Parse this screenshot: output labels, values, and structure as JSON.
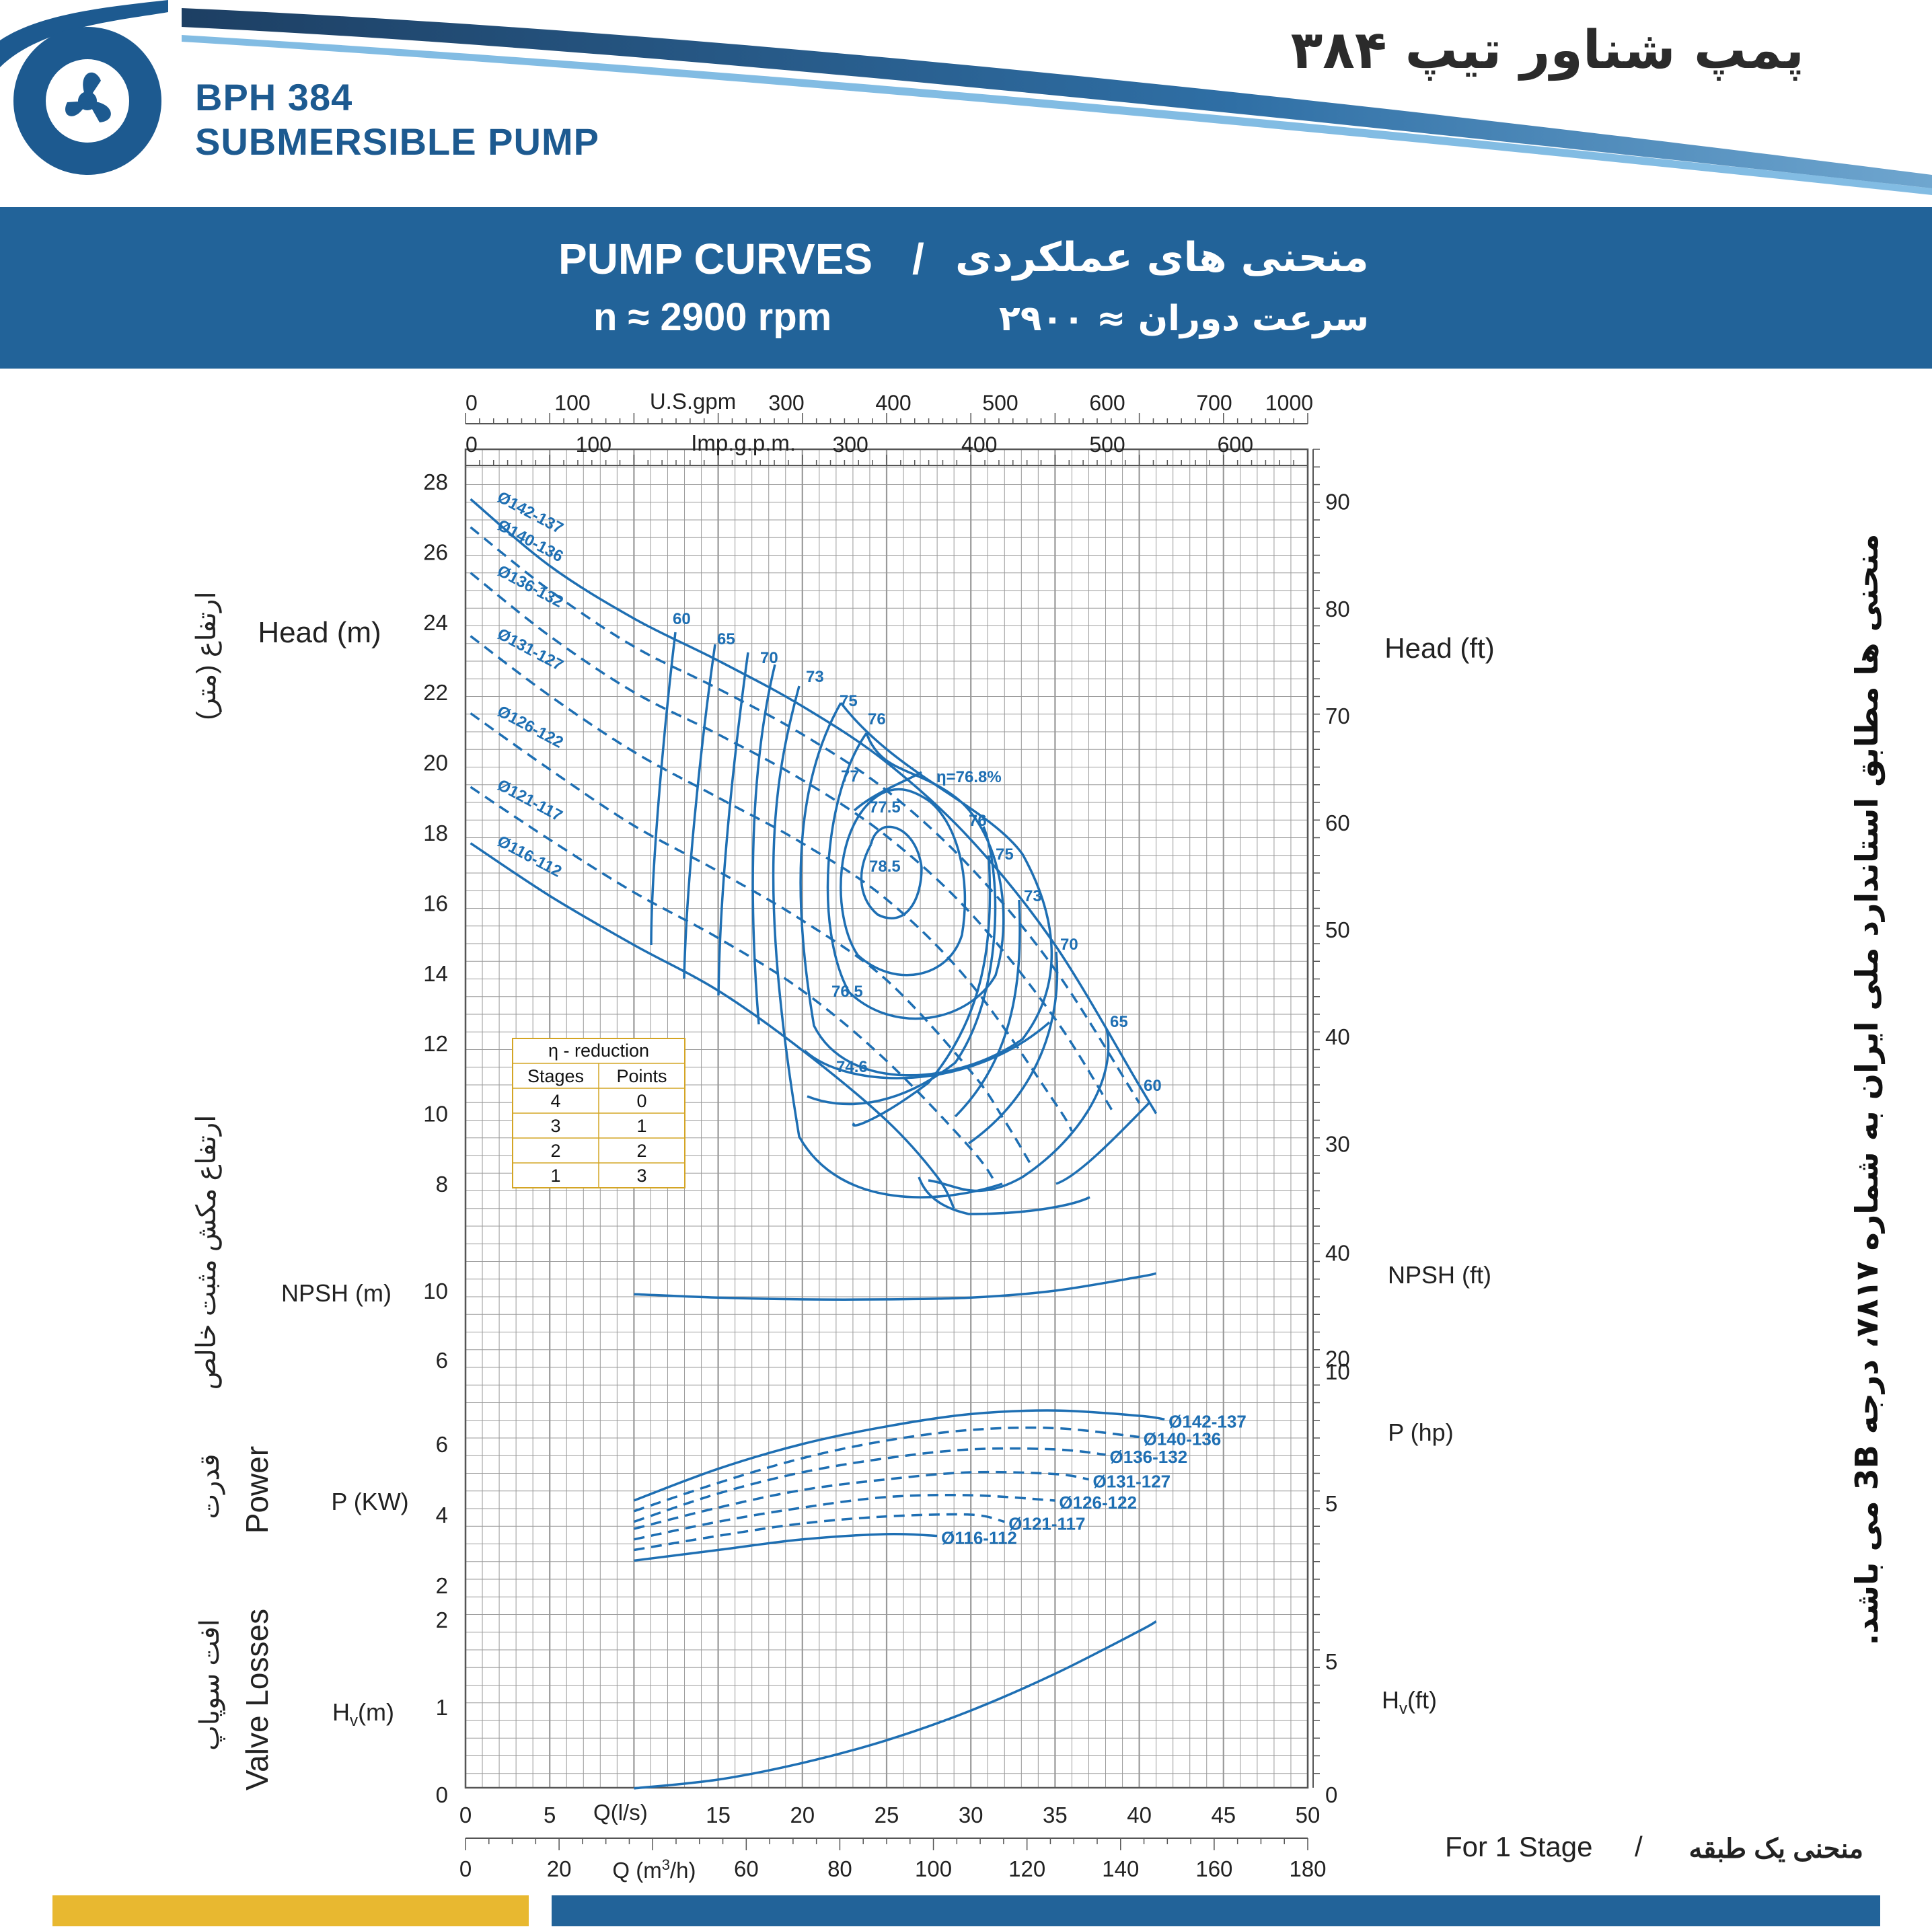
{
  "header": {
    "model": "BPH 384",
    "subtitle": "SUBMERSIBLE PUMP",
    "title_fa": "پمپ شناور تیپ ۳۸۴",
    "band_title_en": "PUMP CURVES",
    "band_separator": "/",
    "band_title_fa": "منحنی های عملکردی",
    "speed_en": "n ≈ 2900 rpm",
    "speed_fa": "سرعت دوران ≈ ۲۹۰۰"
  },
  "colors": {
    "brand_blue": "#226399",
    "curve_blue": "#1e6fb3",
    "grid": "#9a9a9a",
    "accent_yellow": "#e8b830"
  },
  "side_note": "منحنی ها مطابق استاندارد ملی ایران به شماره ۷۸۱۷، درجه 3B می باشد.",
  "footer_note": {
    "en": "For 1 Stage",
    "sep": "/",
    "fa": "منحنی یک طبقه"
  },
  "chart_data": {
    "type": "line",
    "title": "PUMP CURVES",
    "labels": {
      "head_m": "Head (m)",
      "head_m_fa": "ارتفاع (متر)",
      "head_ft": "Head (ft)",
      "npsh_m": "NPSH (m)",
      "npsh_ft": "NPSH (ft)",
      "npsh_fa": "ارتفاع مکش مثبت خالص",
      "power_en": "Power",
      "power_fa": "قدرت",
      "p_kw": "P (KW)",
      "p_hp": "P (hp)",
      "valve_en": "Valve Losses",
      "valve_fa": "افت سوپاپ",
      "hv_m": "H",
      "hv_ft": "H",
      "hv_sub": "v",
      "hv_m_unit": "(m)",
      "hv_ft_unit": "(ft)",
      "q_ls": "Q(l/s)",
      "q_m3h": "Q (m",
      "q_m3h_sup": "3",
      "q_m3h_end": "/h)",
      "usgpm": "U.S.gpm",
      "impgpm": "Imp.g.p.m."
    },
    "axes": {
      "q_ls_ticks": [
        "0",
        "5",
        "10",
        "15",
        "20",
        "25",
        "30",
        "35",
        "40",
        "45",
        "50"
      ],
      "q_m3h_ticks": [
        "0",
        "20",
        "40",
        "60",
        "80",
        "100",
        "120",
        "140",
        "160",
        "180"
      ],
      "usgpm_ticks": [
        "0",
        "100",
        "300",
        "400",
        "500",
        "600",
        "700",
        "1000"
      ],
      "impgpm_ticks": [
        "0",
        "100",
        "300",
        "400",
        "500",
        "600"
      ],
      "head_m_ticks": [
        "8",
        "10",
        "12",
        "14",
        "16",
        "18",
        "20",
        "22",
        "24",
        "26",
        "28"
      ],
      "head_ft_ticks": [
        "30",
        "40",
        "50",
        "60",
        "70",
        "80",
        "90"
      ],
      "npsh_m_ticks": [
        "6",
        "10"
      ],
      "npsh_ft_ticks": [
        "20",
        "40"
      ],
      "p_kw_ticks": [
        "2",
        "4",
        "6"
      ],
      "p_hp_ticks": [
        "5",
        "10"
      ],
      "hv_m_ticks": [
        "0",
        "1",
        "2"
      ],
      "hv_ft_ticks": [
        "0",
        "5"
      ],
      "xlim_ls": [
        0,
        50
      ],
      "head_ylim": [
        7,
        28.5
      ]
    },
    "grid": true,
    "head_curves": [
      {
        "name": "Ø142-137",
        "dashed": false,
        "points": [
          [
            0.3,
            27.5
          ],
          [
            5,
            25.6
          ],
          [
            10,
            24.1
          ],
          [
            15,
            22.9
          ],
          [
            20,
            21.6
          ],
          [
            25,
            20.0
          ],
          [
            30,
            17.8
          ],
          [
            35,
            14.8
          ],
          [
            40,
            10.8
          ],
          [
            41,
            10.0
          ]
        ]
      },
      {
        "name": "Ø140-136",
        "dashed": true,
        "points": [
          [
            0.3,
            26.7
          ],
          [
            5,
            24.9
          ],
          [
            10,
            23.3
          ],
          [
            15,
            22.1
          ],
          [
            20,
            20.8
          ],
          [
            25,
            19.2
          ],
          [
            30,
            17.0
          ],
          [
            35,
            14.1
          ],
          [
            40,
            10.3
          ]
        ]
      },
      {
        "name": "Ø136-132",
        "dashed": true,
        "points": [
          [
            0.3,
            25.4
          ],
          [
            5,
            23.6
          ],
          [
            10,
            22.0
          ],
          [
            15,
            20.8
          ],
          [
            20,
            19.5
          ],
          [
            25,
            17.9
          ],
          [
            30,
            15.7
          ],
          [
            35,
            12.7
          ],
          [
            38.5,
            10.0
          ]
        ]
      },
      {
        "name": "Ø131-127",
        "dashed": true,
        "points": [
          [
            0.3,
            23.6
          ],
          [
            5,
            21.9
          ],
          [
            10,
            20.3
          ],
          [
            15,
            19.0
          ],
          [
            20,
            17.7
          ],
          [
            25,
            16.1
          ],
          [
            30,
            13.7
          ],
          [
            35,
            10.3
          ],
          [
            36,
            9.5
          ]
        ]
      },
      {
        "name": "Ø126-122",
        "dashed": true,
        "points": [
          [
            0.3,
            21.4
          ],
          [
            5,
            19.8
          ],
          [
            10,
            18.2
          ],
          [
            15,
            16.9
          ],
          [
            20,
            15.5
          ],
          [
            25,
            13.8
          ],
          [
            30,
            11.2
          ],
          [
            32,
            9.8
          ],
          [
            33.5,
            8.6
          ]
        ]
      },
      {
        "name": "Ø121-117",
        "dashed": true,
        "points": [
          [
            0.3,
            19.3
          ],
          [
            5,
            17.8
          ],
          [
            10,
            16.3
          ],
          [
            15,
            15.0
          ],
          [
            20,
            13.5
          ],
          [
            25,
            11.5
          ],
          [
            30,
            9.0
          ],
          [
            31.5,
            8.0
          ]
        ]
      },
      {
        "name": "Ø116-112",
        "dashed": false,
        "points": [
          [
            0.3,
            17.7
          ],
          [
            5,
            16.2
          ],
          [
            10,
            14.8
          ],
          [
            15,
            13.5
          ],
          [
            20,
            11.8
          ],
          [
            25,
            9.8
          ],
          [
            28,
            8.2
          ],
          [
            29,
            7.3
          ]
        ]
      }
    ],
    "efficiency_label": "η=76.8%",
    "efficiency_contours": [
      "60",
      "65",
      "70",
      "73",
      "75",
      "76",
      "77",
      "77.5",
      "78.5",
      "76.5",
      "74.6"
    ],
    "npsh_curve": {
      "points": [
        [
          10,
          9.8
        ],
        [
          15,
          9.6
        ],
        [
          20,
          9.5
        ],
        [
          25,
          9.5
        ],
        [
          30,
          9.6
        ],
        [
          35,
          10.0
        ],
        [
          40,
          10.8
        ],
        [
          41,
          11.0
        ]
      ]
    },
    "power_curves": [
      {
        "name": "Ø142-137",
        "points": [
          [
            10,
            4.4
          ],
          [
            15,
            5.3
          ],
          [
            20,
            6.0
          ],
          [
            25,
            6.5
          ],
          [
            30,
            6.85
          ],
          [
            35,
            6.95
          ],
          [
            40,
            6.8
          ],
          [
            41.5,
            6.7
          ]
        ]
      },
      {
        "name": "Ø140-136",
        "points": [
          [
            10,
            4.1
          ],
          [
            15,
            4.9
          ],
          [
            20,
            5.6
          ],
          [
            25,
            6.1
          ],
          [
            30,
            6.4
          ],
          [
            35,
            6.45
          ],
          [
            40,
            6.2
          ]
        ]
      },
      {
        "name": "Ø136-132",
        "points": [
          [
            10,
            3.8
          ],
          [
            15,
            4.6
          ],
          [
            20,
            5.2
          ],
          [
            25,
            5.6
          ],
          [
            30,
            5.85
          ],
          [
            35,
            5.85
          ],
          [
            38,
            5.7
          ]
        ]
      },
      {
        "name": "Ø131-127",
        "points": [
          [
            10,
            3.6
          ],
          [
            15,
            4.2
          ],
          [
            20,
            4.7
          ],
          [
            25,
            5.0
          ],
          [
            30,
            5.2
          ],
          [
            35,
            5.15
          ],
          [
            37,
            5.0
          ]
        ]
      },
      {
        "name": "Ø126-122",
        "points": [
          [
            10,
            3.3
          ],
          [
            15,
            3.8
          ],
          [
            20,
            4.2
          ],
          [
            25,
            4.5
          ],
          [
            30,
            4.55
          ],
          [
            35,
            4.4
          ]
        ]
      },
      {
        "name": "Ø121-117",
        "points": [
          [
            10,
            3.0
          ],
          [
            15,
            3.4
          ],
          [
            20,
            3.75
          ],
          [
            25,
            3.95
          ],
          [
            30,
            4.0
          ],
          [
            32,
            3.8
          ]
        ]
      },
      {
        "name": "Ø116-112",
        "points": [
          [
            10,
            2.7
          ],
          [
            15,
            3.0
          ],
          [
            20,
            3.3
          ],
          [
            25,
            3.45
          ],
          [
            28,
            3.4
          ]
        ]
      }
    ],
    "valve_loss_curve": {
      "points": [
        [
          10,
          0.07
        ],
        [
          15,
          0.17
        ],
        [
          20,
          0.36
        ],
        [
          25,
          0.62
        ],
        [
          30,
          0.96
        ],
        [
          35,
          1.38
        ],
        [
          40,
          1.87
        ],
        [
          41,
          1.98
        ]
      ]
    },
    "reduction_table": {
      "title": "η - reduction",
      "headers": [
        "Stages",
        "Points"
      ],
      "rows": [
        [
          "4",
          "0"
        ],
        [
          "3",
          "1"
        ],
        [
          "2",
          "2"
        ],
        [
          "1",
          "3"
        ]
      ]
    }
  }
}
